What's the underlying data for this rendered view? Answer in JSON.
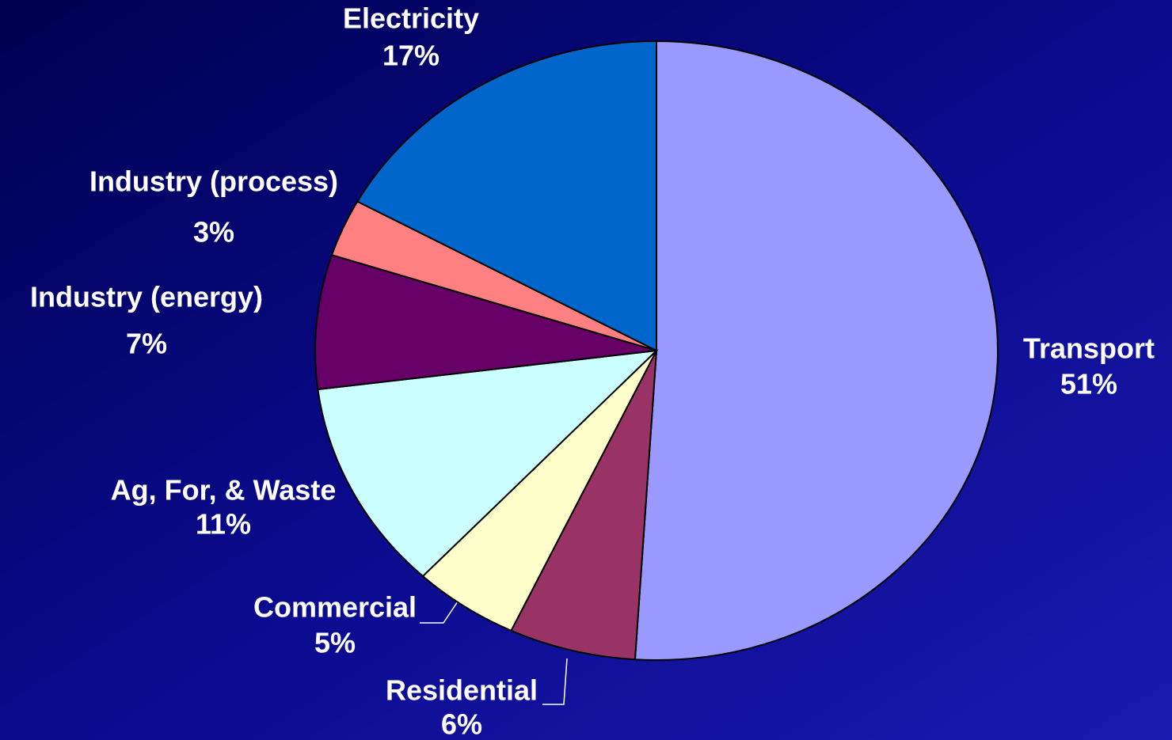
{
  "chart_data": {
    "type": "pie",
    "categories": [
      "Transport",
      "Residential",
      "Commercial",
      "Ag, For, & Waste",
      "Industry (energy)",
      "Industry (process)",
      "Electricity"
    ],
    "values": [
      51,
      6,
      5,
      11,
      7,
      3,
      17
    ],
    "value_labels": [
      "51%",
      "6%",
      "5%",
      "11%",
      "7%",
      "3%",
      "17%"
    ],
    "colors": [
      "#9999ff",
      "#993366",
      "#ffffcc",
      "#ccffff",
      "#660066",
      "#ff8080",
      "#0066cc"
    ]
  }
}
